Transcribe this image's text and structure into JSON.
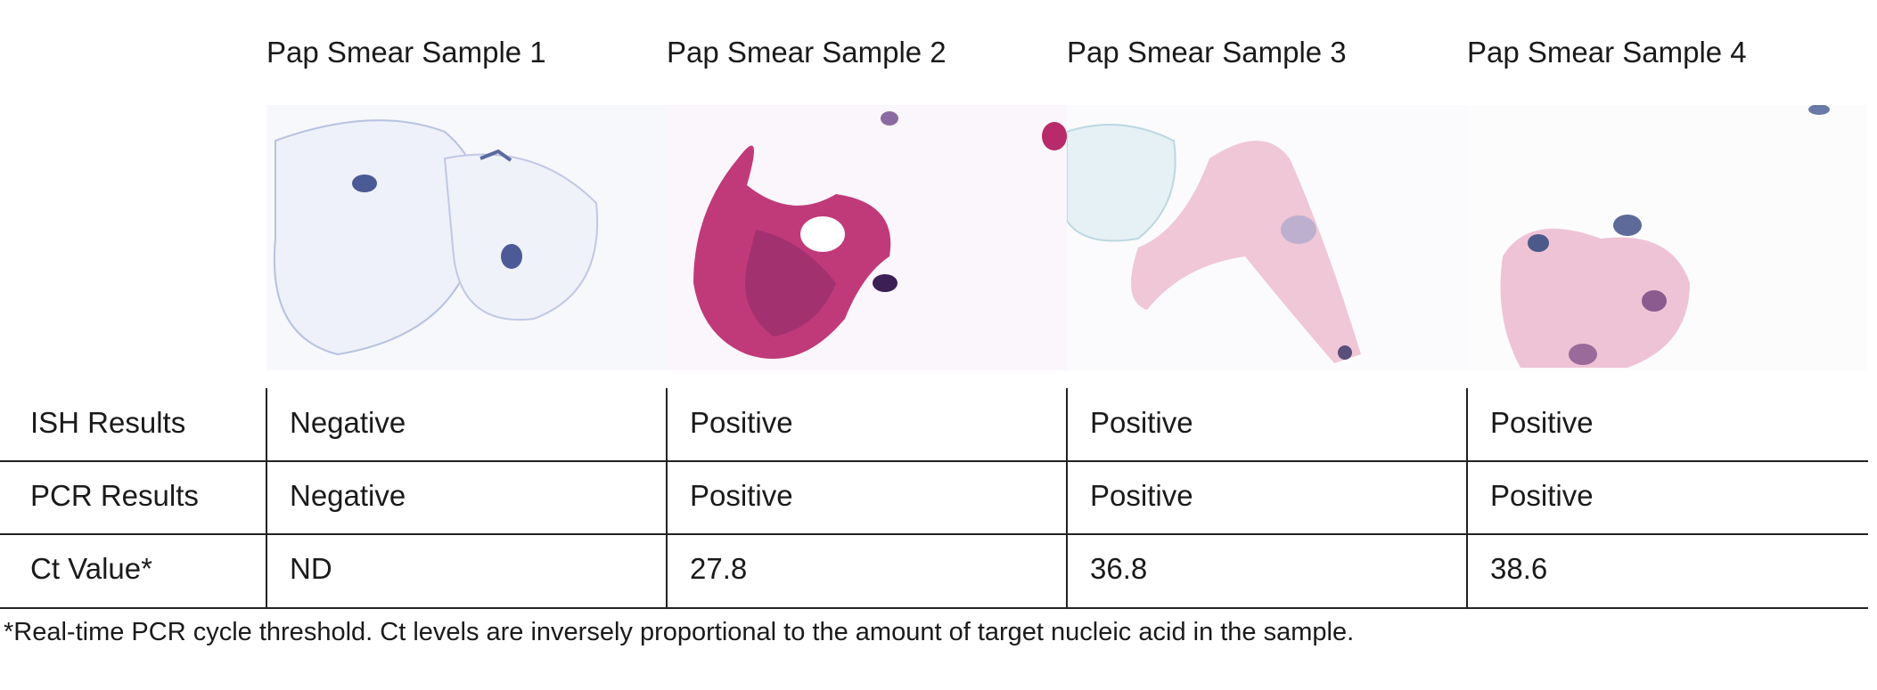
{
  "header": {
    "samples": [
      "Pap Smear Sample 1",
      "Pap Smear Sample 2",
      "Pap Smear Sample 3",
      "Pap Smear Sample 4"
    ]
  },
  "table": {
    "rows": [
      [
        "ISH Results",
        "Negative",
        "Positive",
        "Positive",
        "Positive"
      ],
      [
        "PCR Results",
        "Negative",
        "Positive",
        "Positive",
        "Positive"
      ],
      [
        "Ct Value*",
        "ND",
        27.8,
        36.8,
        38.6
      ]
    ]
  },
  "footnote": "*Real-time PCR cycle threshold. Ct levels are inversely proportional to the amount of target nucleic acid in the sample."
}
